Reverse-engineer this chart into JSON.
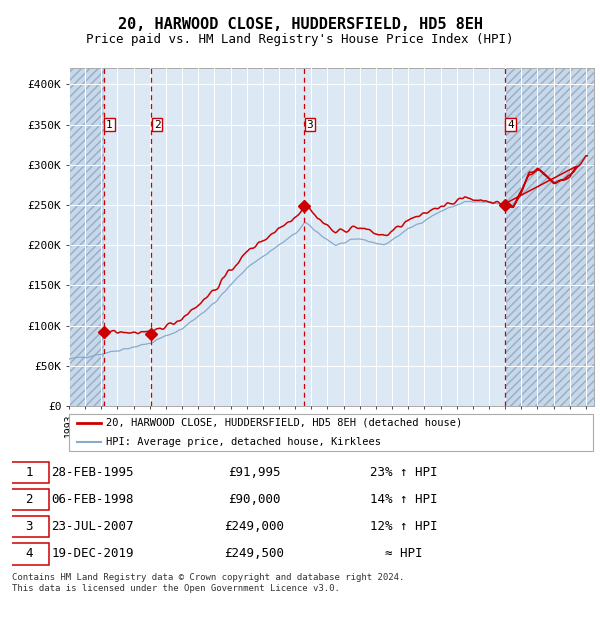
{
  "title": "20, HARWOOD CLOSE, HUDDERSFIELD, HD5 8EH",
  "subtitle": "Price paid vs. HM Land Registry's House Price Index (HPI)",
  "title_fontsize": 11,
  "subtitle_fontsize": 9,
  "xlim": [
    1993.0,
    2025.5
  ],
  "ylim": [
    0,
    420000
  ],
  "yticks": [
    0,
    50000,
    100000,
    150000,
    200000,
    250000,
    300000,
    350000,
    400000
  ],
  "ytick_labels": [
    "£0",
    "£50K",
    "£100K",
    "£150K",
    "£200K",
    "£250K",
    "£300K",
    "£350K",
    "£400K"
  ],
  "xticks": [
    1993,
    1994,
    1995,
    1996,
    1997,
    1998,
    1999,
    2000,
    2001,
    2002,
    2003,
    2004,
    2005,
    2006,
    2007,
    2008,
    2009,
    2010,
    2011,
    2012,
    2013,
    2014,
    2015,
    2016,
    2017,
    2018,
    2019,
    2020,
    2021,
    2022,
    2023,
    2024,
    2025
  ],
  "background_color": "#ffffff",
  "plot_bg_color": "#dce9f5",
  "grid_color": "#ffffff",
  "hatch_color": "#9aacbe",
  "red_line_color": "#cc0000",
  "blue_line_color": "#88aacc",
  "sale_points": [
    {
      "date_num": 1995.15,
      "price": 91995,
      "label": "1"
    },
    {
      "date_num": 1998.1,
      "price": 90000,
      "label": "2"
    },
    {
      "date_num": 2007.55,
      "price": 249000,
      "label": "3"
    },
    {
      "date_num": 2019.97,
      "price": 249500,
      "label": "4"
    }
  ],
  "legend_line1": "20, HARWOOD CLOSE, HUDDERSFIELD, HD5 8EH (detached house)",
  "legend_line2": "HPI: Average price, detached house, Kirklees",
  "table_data": [
    {
      "num": "1",
      "date": "28-FEB-1995",
      "price": "£91,995",
      "change": "23% ↑ HPI"
    },
    {
      "num": "2",
      "date": "06-FEB-1998",
      "price": "£90,000",
      "change": "14% ↑ HPI"
    },
    {
      "num": "3",
      "date": "23-JUL-2007",
      "price": "£249,000",
      "change": "12% ↑ HPI"
    },
    {
      "num": "4",
      "date": "19-DEC-2019",
      "price": "£249,500",
      "change": "≈ HPI"
    }
  ],
  "footer": "Contains HM Land Registry data © Crown copyright and database right 2024.\nThis data is licensed under the Open Government Licence v3.0.",
  "vline_color": "#cc0000",
  "marker_color": "#cc0000"
}
